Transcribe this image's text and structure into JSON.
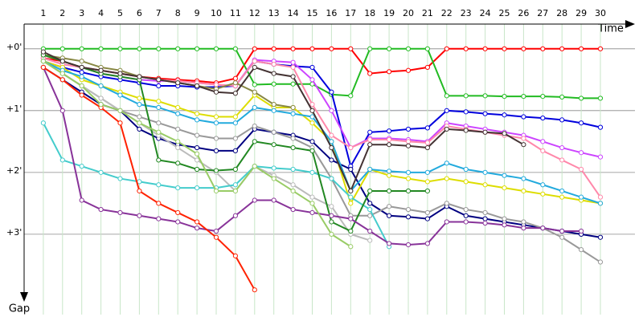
{
  "chart_data": {
    "type": "line",
    "x_label": "Time",
    "y_label": "Gap",
    "categories": [
      "1",
      "2",
      "3",
      "4",
      "5",
      "6",
      "7",
      "8",
      "9",
      "10",
      "11",
      "12",
      "13",
      "14",
      "15",
      "16",
      "17",
      "18",
      "19",
      "20",
      "21",
      "22",
      "23",
      "24",
      "25",
      "26",
      "27",
      "28",
      "29",
      "30"
    ],
    "ylim": [
      -0.4,
      4.3
    ],
    "y_inverted": true,
    "yticks": [
      {
        "value": 0,
        "label": "+0'"
      },
      {
        "value": 1,
        "label": "+1'"
      },
      {
        "value": 2,
        "label": "+2'"
      },
      {
        "value": 3,
        "label": "+3'"
      }
    ],
    "grid": true,
    "series": [
      {
        "color": "#ff0000",
        "values": [
          0.15,
          0.2,
          0.3,
          0.35,
          0.4,
          0.45,
          0.48,
          0.5,
          0.52,
          0.55,
          0.48,
          0,
          0,
          0,
          0,
          0,
          0,
          0.4,
          0.37,
          0.35,
          0.3,
          0,
          0,
          0,
          0,
          0,
          0,
          0,
          0,
          0
        ]
      },
      {
        "color": "#22bb22",
        "values": [
          0,
          0,
          0,
          0,
          0,
          0,
          0,
          0,
          0,
          0,
          0,
          0.58,
          0.57,
          0.57,
          0.57,
          0.74,
          0.76,
          0,
          0,
          0,
          0,
          0.76,
          0.76,
          0.76,
          0.77,
          0.77,
          0.77,
          0.78,
          0.8,
          0.8
        ]
      },
      {
        "color": "#0000dd",
        "values": [
          0.2,
          0.3,
          0.38,
          0.45,
          0.5,
          0.55,
          0.6,
          0.6,
          0.62,
          0.62,
          0.6,
          0.2,
          0.25,
          0.28,
          0.3,
          0.7,
          1.9,
          1.35,
          1.33,
          1.3,
          1.28,
          1.0,
          1.02,
          1.05,
          1.07,
          1.1,
          1.12,
          1.15,
          1.2,
          1.27
        ]
      },
      {
        "color": "#000080",
        "values": [
          0.3,
          0.5,
          0.7,
          0.9,
          1.0,
          1.3,
          1.45,
          1.55,
          1.6,
          1.65,
          1.65,
          1.3,
          1.35,
          1.4,
          1.5,
          1.8,
          1.95,
          2.5,
          2.7,
          2.72,
          2.75,
          2.55,
          2.7,
          2.75,
          2.8,
          2.85,
          2.9,
          2.95,
          3.0,
          3.05
        ]
      },
      {
        "color": "#cc44ff",
        "values": [
          0.15,
          0.25,
          0.3,
          0.4,
          0.45,
          0.5,
          0.52,
          0.52,
          0.55,
          0.58,
          0.6,
          0.18,
          0.2,
          0.22,
          0.5,
          1.0,
          1.6,
          1.45,
          1.45,
          1.47,
          1.5,
          1.2,
          1.25,
          1.3,
          1.35,
          1.4,
          1.5,
          1.6,
          1.68,
          1.75
        ]
      },
      {
        "color": "#ff88aa",
        "values": [
          0.15,
          0.25,
          0.3,
          0.35,
          0.4,
          0.45,
          0.5,
          0.52,
          0.55,
          0.58,
          0.6,
          0.2,
          0.25,
          0.3,
          0.9,
          1.4,
          1.6,
          1.47,
          1.47,
          1.5,
          1.52,
          1.25,
          1.3,
          1.35,
          1.4,
          1.45,
          1.65,
          1.8,
          1.95,
          2.4
        ]
      },
      {
        "color": "#dddd00",
        "values": [
          0.2,
          0.3,
          0.5,
          0.6,
          0.7,
          0.8,
          0.85,
          0.95,
          1.05,
          1.1,
          1.1,
          0.75,
          0.95,
          0.95,
          1.2,
          1.5,
          2.5,
          1.95,
          2.05,
          2.1,
          2.15,
          2.1,
          2.15,
          2.2,
          2.25,
          2.3,
          2.35,
          2.4,
          2.45,
          2.5
        ]
      },
      {
        "color": "#999999",
        "values": [
          0.2,
          0.4,
          0.6,
          0.8,
          1.0,
          1.1,
          1.2,
          1.3,
          1.4,
          1.45,
          1.45,
          1.25,
          1.35,
          1.45,
          1.6,
          2.1,
          2.7,
          2.7,
          2.55,
          2.6,
          2.65,
          2.5,
          2.6,
          2.65,
          2.75,
          2.8,
          2.9,
          3.05,
          3.25,
          3.45
        ]
      },
      {
        "color": "#bbbbbb",
        "values": [
          0.2,
          0.4,
          0.6,
          0.8,
          1.0,
          1.2,
          1.4,
          1.6,
          1.8,
          2.0,
          2.3,
          1.9,
          2.05,
          2.2,
          2.4,
          2.55,
          3.0,
          3.1,
          null,
          null,
          null,
          null,
          null,
          null,
          null,
          null,
          null,
          null,
          null,
          null
        ]
      },
      {
        "color": "#888844",
        "values": [
          0.1,
          0.15,
          0.2,
          0.3,
          0.35,
          0.45,
          0.5,
          0.55,
          0.6,
          0.65,
          0.55,
          0.7,
          0.9,
          0.95,
          null,
          null,
          null,
          null,
          null,
          null,
          null,
          null,
          null,
          null,
          null,
          null,
          null,
          null,
          null,
          null
        ]
      },
      {
        "color": "#22aadd",
        "values": [
          0.2,
          0.35,
          0.45,
          0.6,
          0.75,
          0.9,
          0.95,
          1.05,
          1.15,
          1.2,
          1.2,
          0.95,
          1.0,
          1.05,
          1.1,
          1.5,
          2.3,
          1.95,
          1.98,
          2.0,
          2.0,
          1.85,
          1.95,
          2.0,
          2.05,
          2.1,
          2.2,
          2.3,
          2.4,
          2.5
        ]
      },
      {
        "color": "#44cccc",
        "values": [
          1.2,
          1.8,
          1.9,
          2.0,
          2.1,
          2.15,
          2.2,
          2.25,
          2.25,
          2.25,
          2.2,
          1.9,
          1.93,
          1.95,
          2.0,
          2.1,
          2.4,
          2.6,
          3.2,
          null,
          null,
          null,
          null,
          null,
          null,
          null,
          null,
          null,
          null,
          null
        ]
      },
      {
        "color": "#228822",
        "values": [
          0.1,
          0.2,
          0.3,
          0.4,
          0.45,
          0.5,
          1.8,
          1.85,
          1.95,
          1.97,
          1.95,
          1.5,
          1.55,
          1.6,
          1.65,
          2.8,
          2.95,
          2.3,
          2.3,
          2.3,
          2.3,
          null,
          null,
          null,
          null,
          null,
          null,
          null,
          null,
          null
        ]
      },
      {
        "color": "#883399",
        "values": [
          0.3,
          1.0,
          2.45,
          2.6,
          2.65,
          2.7,
          2.75,
          2.8,
          2.9,
          2.95,
          2.7,
          2.45,
          2.45,
          2.6,
          2.65,
          2.7,
          2.75,
          2.95,
          3.15,
          3.17,
          3.15,
          2.8,
          2.8,
          2.82,
          2.85,
          2.9,
          2.9,
          2.95,
          2.95,
          null
        ]
      },
      {
        "color": "#ff2200",
        "values": [
          0.3,
          0.5,
          0.75,
          0.95,
          1.2,
          2.3,
          2.5,
          2.65,
          2.8,
          3.05,
          3.35,
          3.9,
          null,
          null,
          null,
          null,
          null,
          null,
          null,
          null,
          null,
          null,
          null,
          null,
          null,
          null,
          null,
          null,
          null,
          null
        ]
      },
      {
        "color": "#443333",
        "values": [
          0.05,
          0.2,
          0.3,
          0.35,
          0.4,
          0.45,
          0.5,
          0.55,
          0.6,
          0.7,
          0.72,
          0.3,
          0.4,
          0.45,
          1.0,
          1.6,
          2.3,
          1.55,
          1.55,
          1.57,
          1.6,
          1.3,
          1.32,
          1.35,
          1.37,
          1.55,
          null,
          null,
          null,
          null
        ]
      },
      {
        "color": "#99cc66",
        "values": [
          0.2,
          0.4,
          0.6,
          0.9,
          1.0,
          1.2,
          1.35,
          1.5,
          1.7,
          2.3,
          2.3,
          1.9,
          2.1,
          2.3,
          2.5,
          3.0,
          3.2,
          null,
          null,
          null,
          null,
          null,
          null,
          null,
          null,
          null,
          null,
          null,
          null,
          null
        ]
      }
    ]
  }
}
